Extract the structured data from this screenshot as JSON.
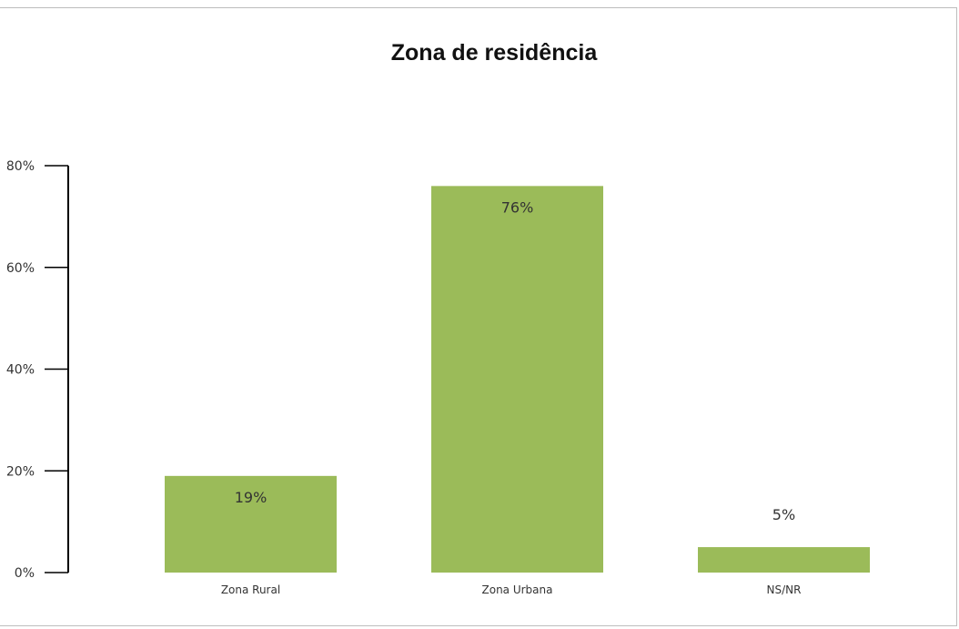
{
  "chart_data": {
    "type": "bar",
    "title": "Zona de residência",
    "xlabel": "",
    "ylabel": "",
    "categories": [
      "Zona Rural",
      "Zona Urbana",
      "NS/NR"
    ],
    "values": [
      19,
      76,
      5
    ],
    "data_labels": [
      "19%",
      "76%",
      "5%"
    ],
    "ylim": [
      0,
      80
    ],
    "yticks": [
      0,
      20,
      40,
      60,
      80
    ],
    "ytick_labels": [
      "0%",
      "20%",
      "40%",
      "60%",
      "80%"
    ],
    "bar_color": "#9bbb59",
    "grid": false,
    "legend": "none"
  }
}
